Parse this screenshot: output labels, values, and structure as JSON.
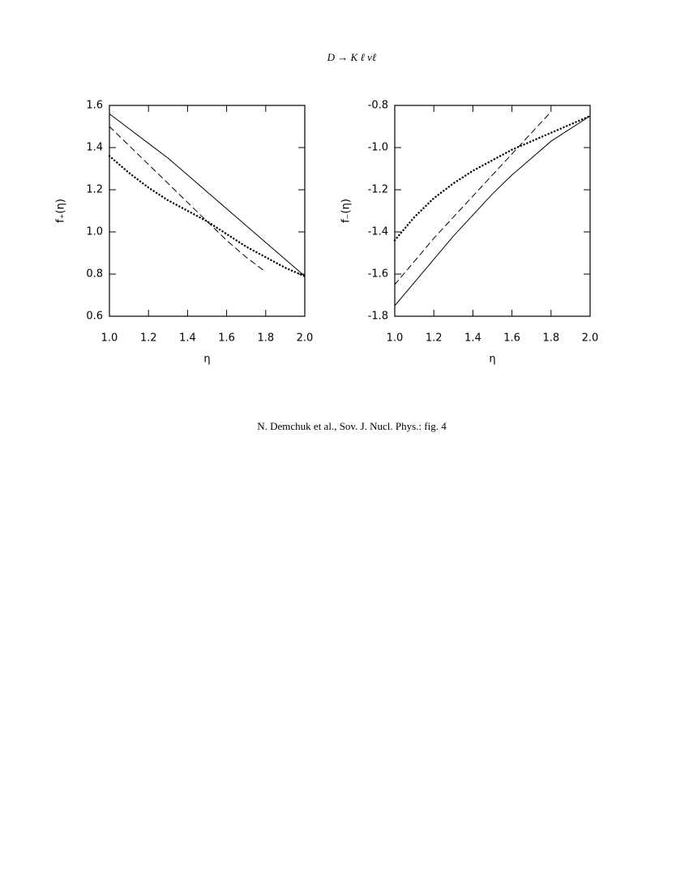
{
  "title": "D → K ℓ νℓ",
  "caption": "N. Demchuk et al., Sov. J. Nucl. Phys.: fig. 4",
  "chart_data": [
    {
      "type": "line",
      "x_label": "η",
      "y_label": "f₊(η)",
      "x": [
        1,
        1.1,
        1.2,
        1.3,
        1.4,
        1.5,
        1.6,
        1.7,
        1.8,
        1.9,
        2
      ],
      "series": [
        {
          "color": "#000000",
          "style": "solid",
          "values": [
            1.56,
            1.49,
            1.42,
            1.35,
            1.27,
            1.19,
            1.11,
            1.03,
            0.95,
            0.87,
            0.79
          ]
        },
        {
          "color": "#000000",
          "style": "dashed",
          "values": [
            1.5,
            1.41,
            1.32,
            1.23,
            1.14,
            1.05,
            0.96,
            0.88,
            0.81,
            null,
            null
          ]
        },
        {
          "color": "#000000",
          "style": "dotted",
          "values": [
            1.36,
            1.28,
            1.21,
            1.15,
            1.1,
            1.05,
            0.99,
            0.93,
            0.88,
            0.83,
            0.79
          ]
        }
      ],
      "xlim": [
        1,
        2
      ],
      "xticks": [
        {
          "value": 1,
          "label": "1.0"
        },
        1.2,
        1.4,
        1.6,
        1.8,
        {
          "value": 2,
          "label": "2.0"
        }
      ],
      "ylim": [
        0.6,
        1.6
      ],
      "yticks": [
        0.6,
        0.8,
        {
          "value": 1,
          "label": "1.0"
        },
        1.2,
        1.4,
        1.6
      ]
    },
    {
      "type": "line",
      "x_label": "η",
      "y_label": "f₋(η)",
      "x": [
        1,
        1.1,
        1.2,
        1.3,
        1.4,
        1.5,
        1.6,
        1.7,
        1.8,
        1.9,
        2
      ],
      "series": [
        {
          "color": "#000000",
          "style": "solid",
          "values": [
            -1.75,
            -1.64,
            -1.53,
            -1.42,
            -1.32,
            -1.22,
            -1.13,
            -1.05,
            -0.97,
            -0.91,
            -0.85
          ]
        },
        {
          "color": "#000000",
          "style": "dashed",
          "values": [
            -1.65,
            -1.54,
            -1.43,
            -1.33,
            -1.23,
            -1.13,
            -1.03,
            -0.93,
            -0.83,
            null,
            null
          ]
        },
        {
          "color": "#000000",
          "style": "dotted",
          "values": [
            -1.44,
            -1.33,
            -1.24,
            -1.17,
            -1.11,
            -1.06,
            -1.01,
            -0.97,
            -0.93,
            -0.89,
            -0.85
          ]
        }
      ],
      "xlim": [
        1,
        2
      ],
      "xticks": [
        {
          "value": 1,
          "label": "1.0"
        },
        1.2,
        1.4,
        1.6,
        1.8,
        {
          "value": 2,
          "label": "2.0"
        }
      ],
      "ylim": [
        -1.8,
        -0.8
      ],
      "yticks": [
        -1.8,
        -1.6,
        -1.4,
        -1.2,
        {
          "value": -1,
          "label": "-1.0"
        },
        -0.8
      ]
    }
  ]
}
